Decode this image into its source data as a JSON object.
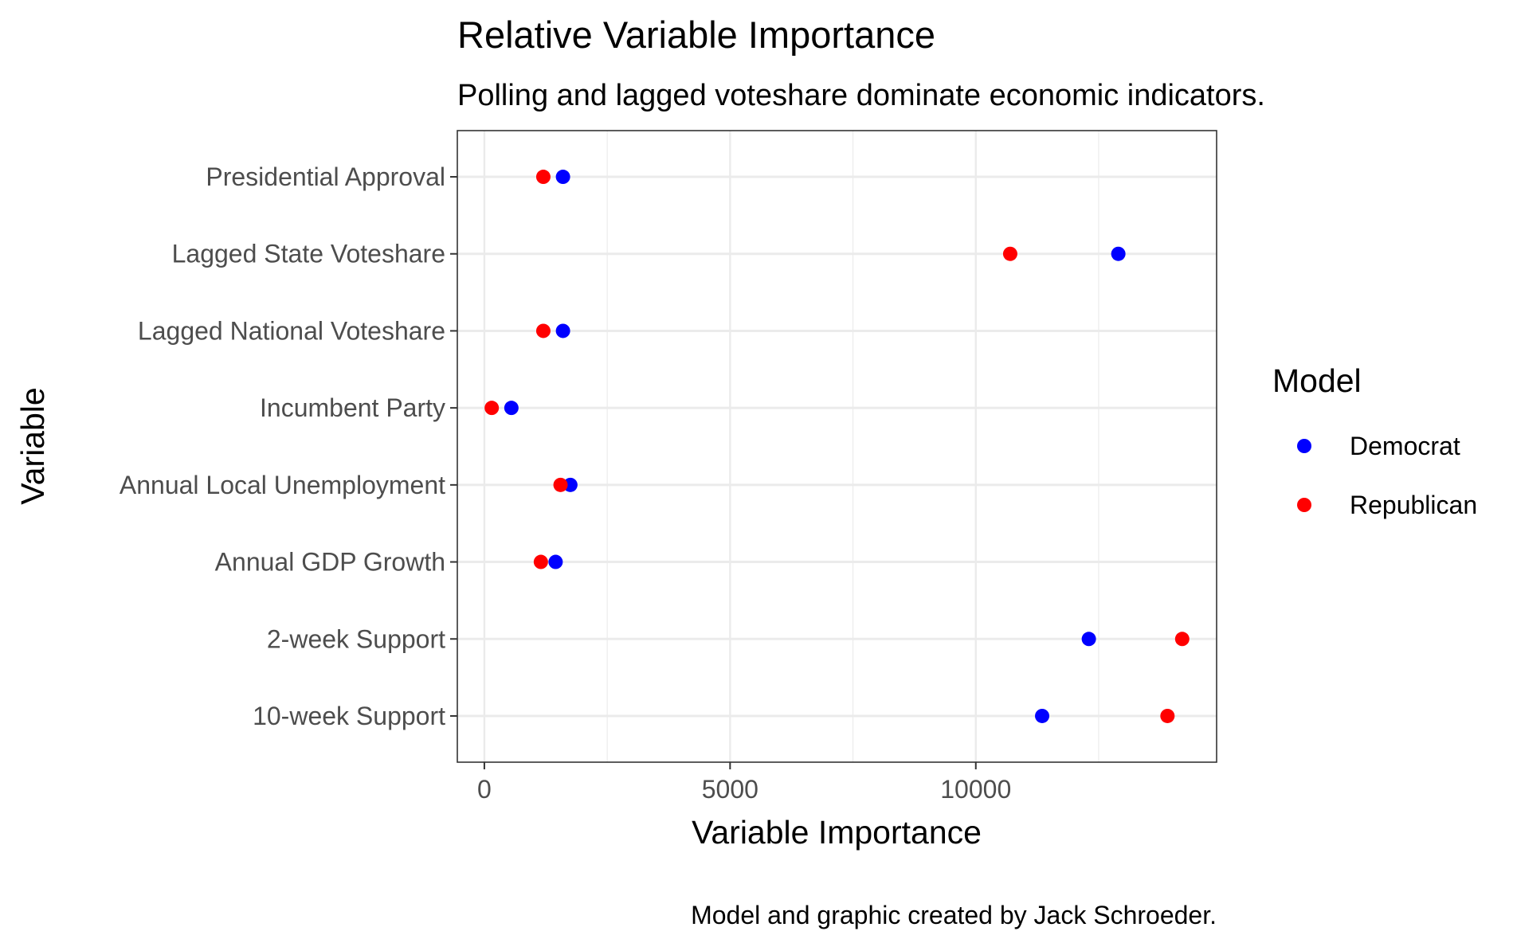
{
  "chart_data": {
    "type": "scatter",
    "title": "Relative Variable Importance",
    "subtitle": "Polling and lagged voteshare dominate economic indicators.",
    "xlabel": "Variable Importance",
    "ylabel": "Variable",
    "caption": "Model and graphic created by Jack Schroeder.",
    "xlim": [
      -550,
      14900
    ],
    "xticks": [
      "0",
      "5000",
      "10000"
    ],
    "xtick_values": [
      0,
      5000,
      10000
    ],
    "categories": [
      "Presidential Approval",
      "Lagged State Voteshare",
      "Lagged National Voteshare",
      "Incumbent Party",
      "Annual Local Unemployment",
      "Annual GDP Growth",
      "2-week Support",
      "10-week Support"
    ],
    "legend": {
      "title": "Model",
      "position": "right"
    },
    "grid": true,
    "series": [
      {
        "name": "Democrat",
        "color": "#0000ff",
        "values": [
          1600,
          12900,
          1600,
          550,
          1750,
          1450,
          12300,
          11350
        ]
      },
      {
        "name": "Republican",
        "color": "#ff0000",
        "values": [
          1200,
          10700,
          1200,
          150,
          1550,
          1150,
          14200,
          13900
        ]
      }
    ]
  }
}
